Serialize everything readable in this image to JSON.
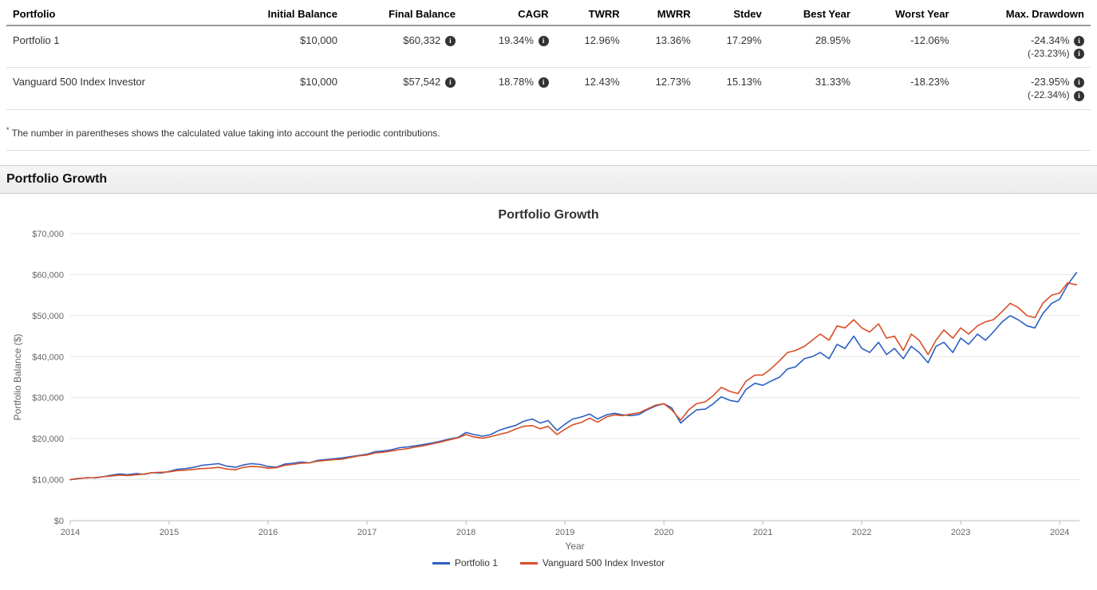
{
  "table": {
    "columns": [
      "Portfolio",
      "Initial Balance",
      "Final Balance",
      "CAGR",
      "TWRR",
      "MWRR",
      "Stdev",
      "Best Year",
      "Worst Year",
      "Max. Drawdown"
    ],
    "rows": [
      {
        "name": "Portfolio 1",
        "initial": "$10,000",
        "final": "$60,332",
        "cagr": "19.34%",
        "twrr": "12.96%",
        "mwrr": "13.36%",
        "stdev": "17.29%",
        "best": "28.95%",
        "worst": "-12.06%",
        "maxdd": "-24.34%",
        "maxdd_sub": "(-23.23%)"
      },
      {
        "name": "Vanguard 500 Index Investor",
        "initial": "$10,000",
        "final": "$57,542",
        "cagr": "18.78%",
        "twrr": "12.43%",
        "mwrr": "12.73%",
        "stdev": "15.13%",
        "best": "31.33%",
        "worst": "-18.23%",
        "maxdd": "-23.95%",
        "maxdd_sub": "(-22.34%)"
      }
    ]
  },
  "footnote": "The number in parentheses shows the calculated value taking into account the periodic contributions.",
  "section_title": "Portfolio Growth",
  "chart": {
    "type": "line",
    "title": "Portfolio Growth",
    "x_label": "Year",
    "y_label": "Portfolio Balance ($)",
    "x_ticks": [
      2014,
      2015,
      2016,
      2017,
      2018,
      2019,
      2020,
      2021,
      2022,
      2023,
      2024
    ],
    "y_ticks": [
      0,
      10000,
      20000,
      30000,
      40000,
      50000,
      60000,
      70000
    ],
    "y_tick_labels": [
      "$0",
      "$10,000",
      "$20,000",
      "$30,000",
      "$40,000",
      "$50,000",
      "$60,000",
      "$70,000"
    ],
    "xlim": [
      2014,
      2024.2
    ],
    "ylim": [
      0,
      70000
    ],
    "background_color": "#ffffff",
    "grid_color": "#e5e5e5",
    "axis_color": "#bcbcbc",
    "line_width": 1.6,
    "series": [
      {
        "name": "Portfolio 1",
        "color": "#2b5fc1",
        "data": [
          [
            2014.0,
            10000
          ],
          [
            2014.08,
            10200
          ],
          [
            2014.17,
            10500
          ],
          [
            2014.25,
            10400
          ],
          [
            2014.33,
            10700
          ],
          [
            2014.42,
            11100
          ],
          [
            2014.5,
            11400
          ],
          [
            2014.58,
            11200
          ],
          [
            2014.67,
            11500
          ],
          [
            2014.75,
            11300
          ],
          [
            2014.83,
            11700
          ],
          [
            2014.92,
            11600
          ],
          [
            2015.0,
            12000
          ],
          [
            2015.08,
            12500
          ],
          [
            2015.17,
            12700
          ],
          [
            2015.25,
            13000
          ],
          [
            2015.33,
            13500
          ],
          [
            2015.42,
            13700
          ],
          [
            2015.5,
            13900
          ],
          [
            2015.58,
            13300
          ],
          [
            2015.67,
            13000
          ],
          [
            2015.75,
            13600
          ],
          [
            2015.83,
            13900
          ],
          [
            2015.92,
            13700
          ],
          [
            2016.0,
            13200
          ],
          [
            2016.08,
            13000
          ],
          [
            2016.17,
            13800
          ],
          [
            2016.25,
            14000
          ],
          [
            2016.33,
            14300
          ],
          [
            2016.42,
            14100
          ],
          [
            2016.5,
            14700
          ],
          [
            2016.58,
            14900
          ],
          [
            2016.67,
            15100
          ],
          [
            2016.75,
            15300
          ],
          [
            2016.83,
            15600
          ],
          [
            2016.92,
            15900
          ],
          [
            2017.0,
            16200
          ],
          [
            2017.08,
            16800
          ],
          [
            2017.17,
            17000
          ],
          [
            2017.25,
            17300
          ],
          [
            2017.33,
            17800
          ],
          [
            2017.42,
            18000
          ],
          [
            2017.5,
            18300
          ],
          [
            2017.58,
            18600
          ],
          [
            2017.67,
            19000
          ],
          [
            2017.75,
            19400
          ],
          [
            2017.83,
            19900
          ],
          [
            2017.92,
            20300
          ],
          [
            2018.0,
            21500
          ],
          [
            2018.08,
            21000
          ],
          [
            2018.17,
            20600
          ],
          [
            2018.25,
            21000
          ],
          [
            2018.33,
            22000
          ],
          [
            2018.42,
            22700
          ],
          [
            2018.5,
            23200
          ],
          [
            2018.58,
            24200
          ],
          [
            2018.67,
            24800
          ],
          [
            2018.75,
            23800
          ],
          [
            2018.83,
            24400
          ],
          [
            2018.92,
            22000
          ],
          [
            2019.0,
            23500
          ],
          [
            2019.08,
            24800
          ],
          [
            2019.17,
            25300
          ],
          [
            2019.25,
            26000
          ],
          [
            2019.33,
            24800
          ],
          [
            2019.42,
            25800
          ],
          [
            2019.5,
            26200
          ],
          [
            2019.58,
            25800
          ],
          [
            2019.67,
            25600
          ],
          [
            2019.75,
            25900
          ],
          [
            2019.83,
            27000
          ],
          [
            2019.92,
            28000
          ],
          [
            2020.0,
            28500
          ],
          [
            2020.08,
            27500
          ],
          [
            2020.17,
            23800
          ],
          [
            2020.25,
            25500
          ],
          [
            2020.33,
            27000
          ],
          [
            2020.42,
            27200
          ],
          [
            2020.5,
            28500
          ],
          [
            2020.58,
            30200
          ],
          [
            2020.67,
            29300
          ],
          [
            2020.75,
            29000
          ],
          [
            2020.83,
            32000
          ],
          [
            2020.92,
            33500
          ],
          [
            2021.0,
            33000
          ],
          [
            2021.08,
            34000
          ],
          [
            2021.17,
            35000
          ],
          [
            2021.25,
            37000
          ],
          [
            2021.33,
            37500
          ],
          [
            2021.42,
            39500
          ],
          [
            2021.5,
            40000
          ],
          [
            2021.58,
            41000
          ],
          [
            2021.67,
            39500
          ],
          [
            2021.75,
            43000
          ],
          [
            2021.83,
            42000
          ],
          [
            2021.92,
            45000
          ],
          [
            2022.0,
            42000
          ],
          [
            2022.08,
            41000
          ],
          [
            2022.17,
            43500
          ],
          [
            2022.25,
            40500
          ],
          [
            2022.33,
            42000
          ],
          [
            2022.42,
            39500
          ],
          [
            2022.5,
            42500
          ],
          [
            2022.58,
            41000
          ],
          [
            2022.67,
            38500
          ],
          [
            2022.75,
            42500
          ],
          [
            2022.83,
            43500
          ],
          [
            2022.92,
            41000
          ],
          [
            2023.0,
            44500
          ],
          [
            2023.08,
            43000
          ],
          [
            2023.17,
            45500
          ],
          [
            2023.25,
            44000
          ],
          [
            2023.33,
            46000
          ],
          [
            2023.42,
            48500
          ],
          [
            2023.5,
            50000
          ],
          [
            2023.58,
            49000
          ],
          [
            2023.67,
            47500
          ],
          [
            2023.75,
            47000
          ],
          [
            2023.83,
            50500
          ],
          [
            2023.92,
            53000
          ],
          [
            2024.0,
            54000
          ],
          [
            2024.08,
            57500
          ],
          [
            2024.17,
            60500
          ]
        ]
      },
      {
        "name": "Vanguard 500 Index Investor",
        "color": "#d94e26",
        "data": [
          [
            2014.0,
            10000
          ],
          [
            2014.08,
            10300
          ],
          [
            2014.17,
            10400
          ],
          [
            2014.25,
            10500
          ],
          [
            2014.33,
            10700
          ],
          [
            2014.42,
            10900
          ],
          [
            2014.5,
            11100
          ],
          [
            2014.58,
            11000
          ],
          [
            2014.67,
            11200
          ],
          [
            2014.75,
            11400
          ],
          [
            2014.83,
            11700
          ],
          [
            2014.92,
            11800
          ],
          [
            2015.0,
            11900
          ],
          [
            2015.08,
            12200
          ],
          [
            2015.17,
            12300
          ],
          [
            2015.25,
            12500
          ],
          [
            2015.33,
            12700
          ],
          [
            2015.42,
            12800
          ],
          [
            2015.5,
            13000
          ],
          [
            2015.58,
            12600
          ],
          [
            2015.67,
            12400
          ],
          [
            2015.75,
            13000
          ],
          [
            2015.83,
            13200
          ],
          [
            2015.92,
            13100
          ],
          [
            2016.0,
            12800
          ],
          [
            2016.08,
            12900
          ],
          [
            2016.17,
            13500
          ],
          [
            2016.25,
            13700
          ],
          [
            2016.33,
            14000
          ],
          [
            2016.42,
            14100
          ],
          [
            2016.5,
            14500
          ],
          [
            2016.58,
            14700
          ],
          [
            2016.67,
            14900
          ],
          [
            2016.75,
            15000
          ],
          [
            2016.83,
            15400
          ],
          [
            2016.92,
            15800
          ],
          [
            2017.0,
            16000
          ],
          [
            2017.08,
            16500
          ],
          [
            2017.17,
            16700
          ],
          [
            2017.25,
            17000
          ],
          [
            2017.33,
            17300
          ],
          [
            2017.42,
            17600
          ],
          [
            2017.5,
            18000
          ],
          [
            2017.58,
            18300
          ],
          [
            2017.67,
            18800
          ],
          [
            2017.75,
            19200
          ],
          [
            2017.83,
            19700
          ],
          [
            2017.92,
            20200
          ],
          [
            2018.0,
            21000
          ],
          [
            2018.08,
            20400
          ],
          [
            2018.17,
            20100
          ],
          [
            2018.25,
            20500
          ],
          [
            2018.33,
            21000
          ],
          [
            2018.42,
            21500
          ],
          [
            2018.5,
            22300
          ],
          [
            2018.58,
            23000
          ],
          [
            2018.67,
            23200
          ],
          [
            2018.75,
            22400
          ],
          [
            2018.83,
            23000
          ],
          [
            2018.92,
            21000
          ],
          [
            2019.0,
            22300
          ],
          [
            2019.08,
            23400
          ],
          [
            2019.17,
            24000
          ],
          [
            2019.25,
            25000
          ],
          [
            2019.33,
            24000
          ],
          [
            2019.42,
            25300
          ],
          [
            2019.5,
            25800
          ],
          [
            2019.58,
            25600
          ],
          [
            2019.67,
            26000
          ],
          [
            2019.75,
            26300
          ],
          [
            2019.83,
            27200
          ],
          [
            2019.92,
            28200
          ],
          [
            2020.0,
            28500
          ],
          [
            2020.08,
            27000
          ],
          [
            2020.17,
            24500
          ],
          [
            2020.25,
            27000
          ],
          [
            2020.33,
            28500
          ],
          [
            2020.42,
            29000
          ],
          [
            2020.5,
            30500
          ],
          [
            2020.58,
            32500
          ],
          [
            2020.67,
            31500
          ],
          [
            2020.75,
            31000
          ],
          [
            2020.83,
            34000
          ],
          [
            2020.92,
            35500
          ],
          [
            2021.0,
            35500
          ],
          [
            2021.08,
            37000
          ],
          [
            2021.17,
            39000
          ],
          [
            2021.25,
            41000
          ],
          [
            2021.33,
            41500
          ],
          [
            2021.42,
            42500
          ],
          [
            2021.5,
            44000
          ],
          [
            2021.58,
            45500
          ],
          [
            2021.67,
            44000
          ],
          [
            2021.75,
            47500
          ],
          [
            2021.83,
            47000
          ],
          [
            2021.92,
            49000
          ],
          [
            2022.0,
            47000
          ],
          [
            2022.08,
            46000
          ],
          [
            2022.17,
            48000
          ],
          [
            2022.25,
            44500
          ],
          [
            2022.33,
            45000
          ],
          [
            2022.42,
            41500
          ],
          [
            2022.5,
            45500
          ],
          [
            2022.58,
            44000
          ],
          [
            2022.67,
            40500
          ],
          [
            2022.75,
            44000
          ],
          [
            2022.83,
            46500
          ],
          [
            2022.92,
            44500
          ],
          [
            2023.0,
            47000
          ],
          [
            2023.08,
            45500
          ],
          [
            2023.17,
            47500
          ],
          [
            2023.25,
            48500
          ],
          [
            2023.33,
            49000
          ],
          [
            2023.42,
            51000
          ],
          [
            2023.5,
            53000
          ],
          [
            2023.58,
            52000
          ],
          [
            2023.67,
            50000
          ],
          [
            2023.75,
            49500
          ],
          [
            2023.83,
            53000
          ],
          [
            2023.92,
            55000
          ],
          [
            2024.0,
            55500
          ],
          [
            2024.08,
            58000
          ],
          [
            2024.17,
            57500
          ]
        ]
      }
    ]
  }
}
